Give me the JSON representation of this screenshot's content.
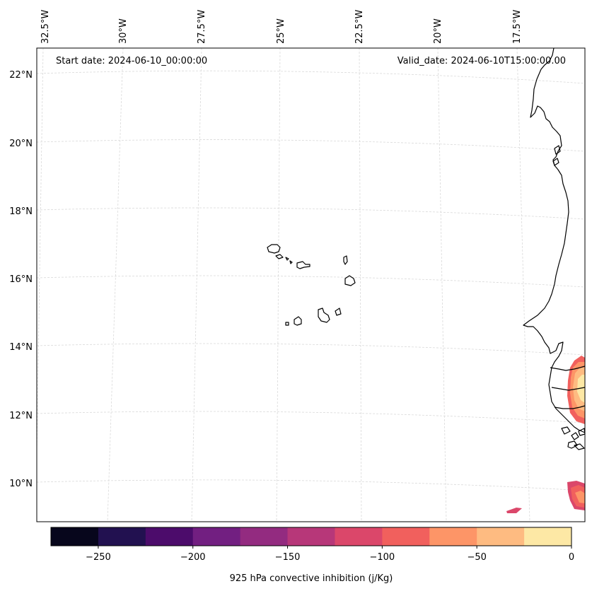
{
  "header": {
    "start_date": "Start date: 2024-06-10_00:00:00",
    "valid_date": "Valid_date: 2024-06-10T15:00:00.00"
  },
  "map": {
    "lon_labels": [
      "32.5°W",
      "30°W",
      "27.5°W",
      "25°W",
      "22.5°W",
      "20°W",
      "17.5°W"
    ],
    "lat_labels": [
      "22°N",
      "20°N",
      "18°N",
      "16°N",
      "14°N",
      "12°N",
      "10°N"
    ],
    "gridline_color": "#d0d0d0",
    "coastline_color": "#000000"
  },
  "colorbar": {
    "title": "925 hPa convective inhibition (j/Kg)",
    "range": [
      -275,
      0
    ],
    "tick_labels": [
      "−250",
      "−200",
      "−150",
      "−100",
      "−50",
      "0"
    ],
    "bins": [
      {
        "from": -275,
        "to": -250,
        "color": "#07061c"
      },
      {
        "from": -250,
        "to": -225,
        "color": "#221150"
      },
      {
        "from": -225,
        "to": -200,
        "color": "#4c0c6b"
      },
      {
        "from": -200,
        "to": -175,
        "color": "#721f81"
      },
      {
        "from": -175,
        "to": -150,
        "color": "#932b80"
      },
      {
        "from": -150,
        "to": -125,
        "color": "#b73779"
      },
      {
        "from": -125,
        "to": -100,
        "color": "#db476a"
      },
      {
        "from": -100,
        "to": -75,
        "color": "#f1605d"
      },
      {
        "from": -75,
        "to": -50,
        "color": "#fd9567"
      },
      {
        "from": -50,
        "to": -25,
        "color": "#febb81"
      },
      {
        "from": -25,
        "to": 0,
        "color": "#fde8a5"
      }
    ]
  }
}
